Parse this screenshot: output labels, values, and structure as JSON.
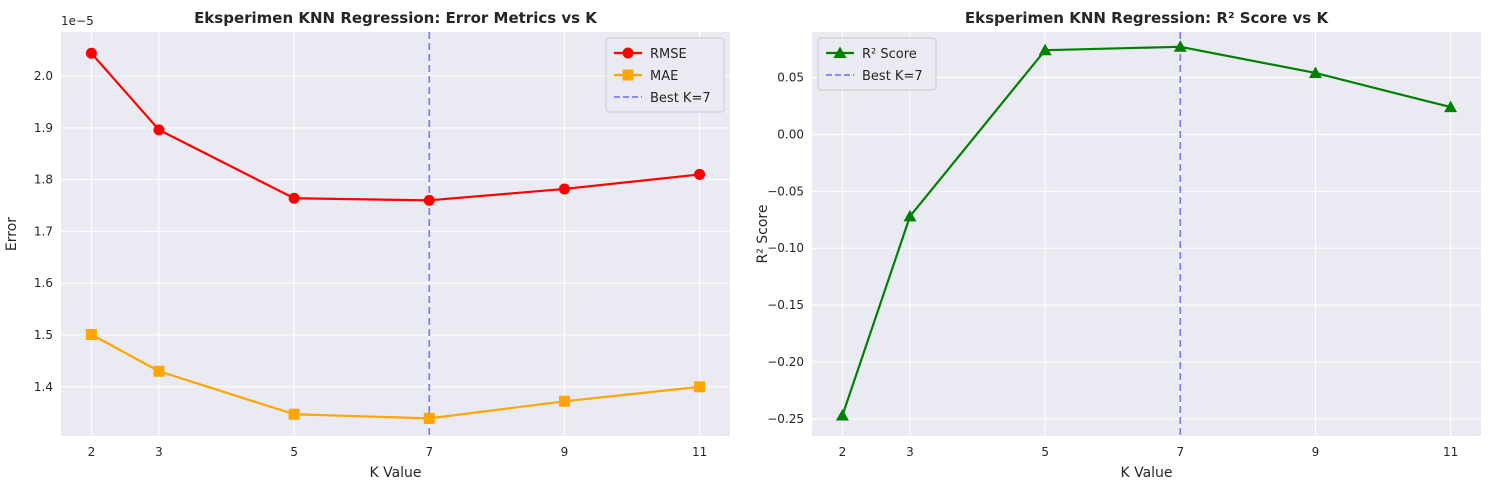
{
  "chart_data": [
    {
      "type": "line",
      "title": "Eksperimen KNN Regression: Error Metrics vs K",
      "xlabel": "K Value",
      "ylabel": "Error",
      "y_offset_label": "1e−5",
      "x": [
        2,
        3,
        5,
        7,
        9,
        11
      ],
      "xlim": [
        1.55,
        11.45
      ],
      "ylim": [
        1.305,
        2.085
      ],
      "xticks": [
        2,
        3,
        5,
        7,
        9,
        11
      ],
      "yticks": [
        1.4,
        1.5,
        1.6,
        1.7,
        1.8,
        1.9,
        2.0
      ],
      "grid": true,
      "legend_position": "top-right",
      "series": [
        {
          "name": "RMSE",
          "values": [
            2.044,
            1.896,
            1.764,
            1.76,
            1.782,
            1.81
          ],
          "color": "#ff0000",
          "marker": "circle"
        },
        {
          "name": "MAE",
          "values": [
            1.501,
            1.43,
            1.347,
            1.339,
            1.372,
            1.4
          ],
          "color": "#ffa500",
          "marker": "square"
        }
      ],
      "vline": {
        "x": 7,
        "label": "Best K=7",
        "color": "#6b6bf0"
      }
    },
    {
      "type": "line",
      "title": "Eksperimen KNN Regression: R² Score vs K",
      "xlabel": "K Value",
      "ylabel": "R² Score",
      "x": [
        2,
        3,
        5,
        7,
        9,
        11
      ],
      "xlim": [
        1.55,
        11.45
      ],
      "ylim": [
        -0.265,
        0.09
      ],
      "xticks": [
        2,
        3,
        5,
        7,
        9,
        11
      ],
      "yticks": [
        -0.25,
        -0.2,
        -0.15,
        -0.1,
        -0.05,
        0.0,
        0.05
      ],
      "ytick_labels": [
        "−0.25",
        "−0.20",
        "−0.15",
        "−0.10",
        "−0.05",
        "0.00",
        "0.05"
      ],
      "grid": true,
      "legend_position": "top-left",
      "series": [
        {
          "name": "R² Score",
          "values": [
            -0.247,
            -0.072,
            0.074,
            0.077,
            0.054,
            0.024
          ],
          "color": "#008000",
          "marker": "triangle"
        }
      ],
      "vline": {
        "x": 7,
        "label": "Best K=7",
        "color": "#6b6bf0"
      }
    }
  ]
}
